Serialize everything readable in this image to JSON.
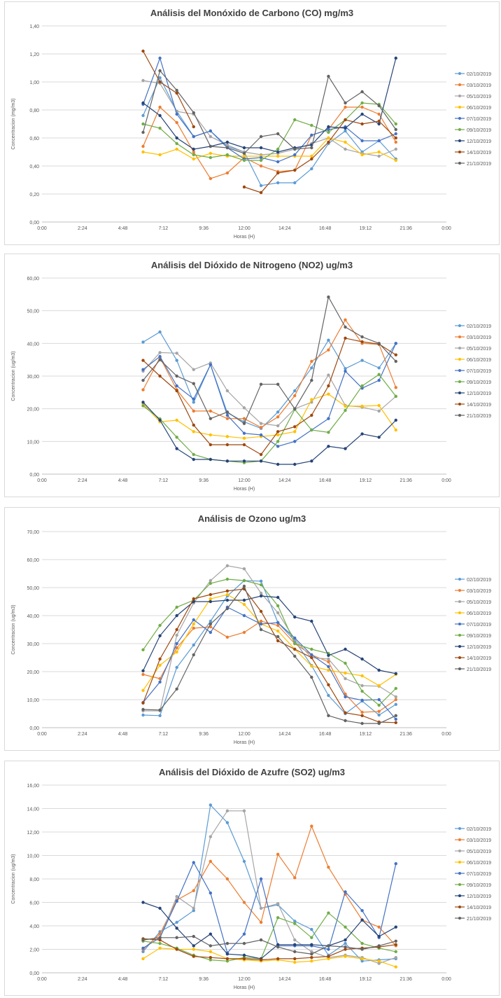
{
  "chart_data": [
    {
      "type": "line",
      "title": "Análisis del Monóxido de Carbono (CO) mg/m3",
      "xlabel": "Horas (H)",
      "ylabel": "Concentracion (mg/m3)",
      "xlim": [
        0,
        24
      ],
      "ylim": [
        0,
        1.4
      ],
      "xticks": [
        "0:00",
        "2:24",
        "4:48",
        "7:12",
        "9:36",
        "12:00",
        "14:24",
        "16:48",
        "19:12",
        "21:36",
        "0:00"
      ],
      "yticks": [
        "0,00",
        "0,20",
        "0,40",
        "0,60",
        "0,80",
        "1,00",
        "1,20",
        "1,40"
      ],
      "grid": true,
      "legend": "right",
      "x": [
        6,
        7,
        8,
        9,
        10,
        11,
        12,
        13,
        14,
        15,
        16,
        17,
        18,
        19,
        20,
        21
      ],
      "series": [
        {
          "name": "02/10/2019",
          "color": "#5b9bd5",
          "values": [
            0.76,
            1.03,
            0.79,
            0.61,
            0.65,
            0.54,
            0.5,
            0.26,
            0.28,
            0.28,
            0.38,
            0.56,
            0.65,
            0.5,
            0.58,
            0.45
          ]
        },
        {
          "name": "03/10/2019",
          "color": "#ed7d31",
          "values": [
            0.54,
            0.82,
            0.71,
            0.5,
            0.31,
            0.35,
            0.46,
            0.4,
            0.36,
            0.37,
            0.62,
            0.66,
            0.82,
            0.82,
            0.77,
            0.57
          ]
        },
        {
          "name": "05/10/2019",
          "color": "#a5a5a5",
          "values": [
            1.01,
            0.99,
            0.79,
            0.77,
            0.61,
            0.55,
            0.5,
            0.48,
            0.49,
            0.52,
            0.56,
            0.6,
            0.52,
            0.49,
            0.47,
            0.52
          ]
        },
        {
          "name": "06/10/2019",
          "color": "#ffc000",
          "values": [
            0.5,
            0.48,
            0.52,
            0.45,
            0.49,
            0.47,
            0.47,
            0.47,
            0.47,
            0.47,
            0.47,
            0.6,
            0.57,
            0.48,
            0.5,
            0.44
          ]
        },
        {
          "name": "07/10/2019",
          "color": "#4472c4",
          "values": [
            0.84,
            1.17,
            0.77,
            0.61,
            0.65,
            0.53,
            0.45,
            0.46,
            0.43,
            0.48,
            0.62,
            0.66,
            0.68,
            0.58,
            0.58,
            0.63
          ]
        },
        {
          "name": "09/10/2019",
          "color": "#70ad47",
          "values": [
            0.7,
            0.67,
            0.56,
            0.48,
            0.46,
            0.48,
            0.44,
            0.44,
            0.52,
            0.73,
            0.69,
            0.64,
            0.73,
            0.85,
            0.84,
            0.7
          ]
        },
        {
          "name": "12/10/2019",
          "color": "#264478",
          "values": [
            0.85,
            0.76,
            0.6,
            0.52,
            0.54,
            0.57,
            0.53,
            0.53,
            0.5,
            0.53,
            0.55,
            0.68,
            0.67,
            0.77,
            0.7,
            1.17
          ]
        },
        {
          "name": "14/10/2019",
          "color": "#9e480e",
          "values": [
            1.22,
            1.0,
            0.92,
            0.68,
            null,
            null,
            0.25,
            0.21,
            0.35,
            0.37,
            0.45,
            0.57,
            0.73,
            0.7,
            0.72,
            0.6
          ]
        },
        {
          "name": "21/10/2019",
          "color": "#636363",
          "values": [
            0.64,
            1.08,
            0.94,
            0.78,
            0.54,
            0.53,
            0.49,
            0.61,
            0.63,
            0.52,
            0.53,
            1.04,
            0.85,
            0.93,
            0.83,
            0.66
          ]
        }
      ]
    },
    {
      "type": "line",
      "title": "Análisis del Dióxido de Nitrogeno (NO2) ug/m3",
      "xlabel": "Horas (H)",
      "ylabel": "Concentracion (ug/m3)",
      "xlim": [
        0,
        24
      ],
      "ylim": [
        0,
        60
      ],
      "xticks": [
        "0:00",
        "2:24",
        "4:48",
        "7:12",
        "9:36",
        "12:00",
        "14:24",
        "16:48",
        "19:12",
        "21:36",
        "0:00"
      ],
      "yticks": [
        "0,00",
        "10,00",
        "20,00",
        "30,00",
        "40,00",
        "50,00",
        "60,00"
      ],
      "grid": true,
      "legend": "right",
      "x": [
        6,
        7,
        8,
        9,
        10,
        11,
        12,
        13,
        14,
        15,
        16,
        17,
        18,
        19,
        20,
        21
      ],
      "series": [
        {
          "name": "02/10/2019",
          "color": "#5b9bd5",
          "values": [
            40.4,
            43.5,
            34.8,
            22.0,
            33.5,
            18.8,
            16.0,
            14.0,
            19.0,
            25.5,
            32.5,
            41.0,
            32.3,
            34.8,
            32.5,
            40.0
          ]
        },
        {
          "name": "03/10/2019",
          "color": "#ed7d31",
          "values": [
            25.8,
            35.7,
            25.8,
            19.3,
            19.3,
            17.0,
            17.0,
            14.3,
            17.5,
            24.0,
            34.5,
            38.0,
            47.2,
            40.0,
            39.7,
            26.5
          ]
        },
        {
          "name": "05/10/2019",
          "color": "#a5a5a5",
          "values": [
            31.5,
            37.2,
            37.0,
            32.0,
            34.0,
            25.5,
            20.3,
            15.5,
            14.8,
            20.0,
            22.0,
            30.3,
            21.0,
            20.5,
            19.3,
            23.8
          ]
        },
        {
          "name": "06/10/2019",
          "color": "#ffc000",
          "values": [
            21.5,
            16.0,
            16.5,
            13.0,
            12.0,
            11.5,
            11.0,
            11.5,
            12.0,
            13.0,
            22.8,
            24.5,
            20.8,
            20.8,
            21.0,
            13.5
          ]
        },
        {
          "name": "07/10/2019",
          "color": "#4472c4",
          "values": [
            32.0,
            36.0,
            27.0,
            23.0,
            33.5,
            18.0,
            12.5,
            12.0,
            8.5,
            10.0,
            13.5,
            17.0,
            31.5,
            26.3,
            28.7,
            40.0
          ]
        },
        {
          "name": "09/10/2019",
          "color": "#70ad47",
          "values": [
            20.9,
            16.9,
            11.3,
            6.0,
            4.5,
            4.0,
            3.5,
            4.0,
            10.0,
            19.8,
            13.5,
            12.8,
            19.5,
            27.0,
            30.5,
            23.8
          ]
        },
        {
          "name": "12/10/2019",
          "color": "#264478",
          "values": [
            22.0,
            16.5,
            7.8,
            4.5,
            4.5,
            4.0,
            4.0,
            4.0,
            3.0,
            3.0,
            4.0,
            8.5,
            7.8,
            12.3,
            11.3,
            16.5
          ]
        },
        {
          "name": "14/10/2019",
          "color": "#9e480e",
          "values": [
            34.8,
            30.0,
            25.5,
            15.0,
            9.0,
            9.0,
            9.0,
            6.0,
            13.0,
            14.5,
            18.0,
            27.0,
            41.6,
            40.5,
            39.8,
            36.5
          ]
        },
        {
          "name": "21/10/2019",
          "color": "#636363",
          "values": [
            28.7,
            35.0,
            30.0,
            27.7,
            17.0,
            19.0,
            15.5,
            27.5,
            27.5,
            20.0,
            28.7,
            54.2,
            45.0,
            42.0,
            40.0,
            34.5
          ]
        }
      ]
    },
    {
      "type": "line",
      "title": "Análisis de Ozono ug/m3",
      "xlabel": "Horas (H)",
      "ylabel": "Concentracion (ug/m3)",
      "xlim": [
        0,
        24
      ],
      "ylim": [
        0,
        70
      ],
      "xticks": [
        "0:00",
        "2:24",
        "4:48",
        "7:12",
        "9:36",
        "12:00",
        "14:24",
        "16:48",
        "19:12",
        "21:36",
        "0:00"
      ],
      "yticks": [
        "0,00",
        "10,00",
        "20,00",
        "30,00",
        "40,00",
        "50,00",
        "60,00",
        "70,00"
      ],
      "grid": true,
      "legend": "right",
      "x": [
        6,
        7,
        8,
        9,
        10,
        11,
        12,
        13,
        14,
        15,
        16,
        17,
        18,
        19,
        20,
        21
      ],
      "series": [
        {
          "name": "02/10/2019",
          "color": "#5b9bd5",
          "values": [
            4.5,
            4.3,
            21.5,
            29.5,
            38.0,
            47.0,
            52.5,
            52.3,
            37.5,
            31.0,
            22.2,
            11.5,
            5.0,
            9.5,
            4.5,
            8.3
          ]
        },
        {
          "name": "03/10/2019",
          "color": "#ed7d31",
          "values": [
            19.0,
            17.5,
            28.5,
            35.5,
            36.0,
            32.3,
            34.0,
            38.0,
            36.5,
            30.0,
            26.0,
            23.5,
            12.0,
            5.5,
            5.8,
            10.0
          ]
        },
        {
          "name": "05/10/2019",
          "color": "#a5a5a5",
          "values": [
            6.0,
            6.0,
            33.0,
            44.5,
            52.5,
            57.8,
            56.7,
            48.0,
            41.0,
            31.5,
            25.0,
            24.5,
            17.5,
            15.0,
            14.8,
            11.0
          ]
        },
        {
          "name": "06/10/2019",
          "color": "#ffc000",
          "values": [
            13.3,
            22.3,
            27.0,
            37.0,
            46.0,
            47.5,
            44.0,
            37.0,
            34.5,
            28.0,
            22.0,
            20.5,
            19.5,
            18.5,
            15.0,
            19.0
          ]
        },
        {
          "name": "07/10/2019",
          "color": "#4472c4",
          "values": [
            9.0,
            16.3,
            30.0,
            38.5,
            34.0,
            43.0,
            40.0,
            37.0,
            37.5,
            32.0,
            26.0,
            21.8,
            11.0,
            9.8,
            10.0,
            3.0
          ]
        },
        {
          "name": "09/10/2019",
          "color": "#70ad47",
          "values": [
            27.8,
            36.5,
            43.0,
            45.5,
            51.5,
            53.0,
            52.5,
            51.0,
            43.5,
            30.0,
            28.0,
            26.5,
            23.0,
            13.0,
            8.0,
            14.0
          ]
        },
        {
          "name": "12/10/2019",
          "color": "#264478",
          "values": [
            20.3,
            32.8,
            40.0,
            45.0,
            45.0,
            45.5,
            45.5,
            47.0,
            46.5,
            39.5,
            38.0,
            25.8,
            28.0,
            24.5,
            20.5,
            19.3
          ]
        },
        {
          "name": "14/10/2019",
          "color": "#9e480e",
          "values": [
            8.8,
            24.5,
            35.0,
            46.0,
            47.5,
            48.8,
            49.5,
            41.5,
            31.0,
            28.0,
            25.0,
            15.3,
            5.3,
            4.3,
            2.0,
            1.8
          ]
        },
        {
          "name": "21/10/2019",
          "color": "#636363",
          "values": [
            6.5,
            6.3,
            13.8,
            26.0,
            37.0,
            42.5,
            50.5,
            35.0,
            32.5,
            25.5,
            18.0,
            4.3,
            2.5,
            1.5,
            1.5,
            4.3
          ]
        }
      ]
    },
    {
      "type": "line",
      "title": "Análisis del Dióxido de Azufre (SO2) ug/m3",
      "xlabel": "Horas (H)",
      "ylabel": "Concentracion (ug/m3)",
      "xlim": [
        0,
        24
      ],
      "ylim": [
        0,
        16
      ],
      "xticks": [
        "0:00",
        "2:24",
        "4:48",
        "7:12",
        "9:36",
        "12:00",
        "14:24",
        "16:48",
        "19:12",
        "21:36",
        "0:00"
      ],
      "yticks": [
        "0,00",
        "2,00",
        "4,00",
        "6,00",
        "8,00",
        "10,00",
        "12,00",
        "14,00",
        "16,00"
      ],
      "grid": true,
      "legend": "right",
      "x": [
        6,
        7,
        8,
        9,
        10,
        11,
        12,
        13,
        14,
        15,
        16,
        17,
        18,
        19,
        20,
        21
      ],
      "series": [
        {
          "name": "02/10/2019",
          "color": "#5b9bd5",
          "values": [
            1.8,
            3.5,
            4.3,
            5.3,
            14.3,
            12.8,
            9.5,
            5.5,
            5.8,
            4.4,
            3.7,
            1.5,
            2.5,
            1.0,
            1.1,
            1.2
          ]
        },
        {
          "name": "03/10/2019",
          "color": "#ed7d31",
          "values": [
            2.0,
            3.3,
            6.2,
            7.0,
            9.5,
            8.0,
            6.0,
            4.3,
            10.1,
            8.1,
            12.5,
            9.0,
            6.7,
            4.5,
            3.9,
            2.3
          ]
        },
        {
          "name": "05/10/2019",
          "color": "#a5a5a5",
          "values": [
            2.8,
            3.0,
            6.5,
            5.5,
            11.6,
            13.8,
            13.8,
            5.5,
            5.9,
            2.8,
            1.8,
            1.3,
            1.5,
            1.3,
            0.8,
            1.3
          ]
        },
        {
          "name": "06/10/2019",
          "color": "#ffc000",
          "values": [
            1.2,
            2.1,
            2.0,
            2.0,
            1.8,
            1.2,
            1.1,
            1.0,
            1.1,
            0.9,
            1.0,
            1.2,
            1.4,
            1.2,
            1.0,
            0.5
          ]
        },
        {
          "name": "07/10/2019",
          "color": "#4472c4",
          "values": [
            2.1,
            3.0,
            6.1,
            9.4,
            6.8,
            1.7,
            3.3,
            8.0,
            2.3,
            2.3,
            2.3,
            2.0,
            6.9,
            5.3,
            3.0,
            9.3
          ]
        },
        {
          "name": "09/10/2019",
          "color": "#70ad47",
          "values": [
            2.7,
            2.5,
            2.1,
            1.5,
            1.1,
            1.0,
            1.3,
            1.2,
            4.7,
            4.2,
            3.0,
            5.1,
            3.9,
            2.5,
            2.1,
            1.8
          ]
        },
        {
          "name": "12/10/2019",
          "color": "#264478",
          "values": [
            6.0,
            5.5,
            3.8,
            2.3,
            3.3,
            1.6,
            1.5,
            1.2,
            2.4,
            2.4,
            2.4,
            2.3,
            2.8,
            4.5,
            3.1,
            3.9
          ]
        },
        {
          "name": "14/10/2019",
          "color": "#9e480e",
          "values": [
            2.9,
            2.8,
            2.0,
            1.4,
            1.3,
            1.2,
            1.2,
            1.1,
            1.2,
            1.2,
            1.3,
            1.4,
            2.0,
            2.1,
            2.2,
            2.4
          ]
        },
        {
          "name": "21/10/2019",
          "color": "#636363",
          "values": [
            2.8,
            3.0,
            3.0,
            3.1,
            2.3,
            2.5,
            2.5,
            2.8,
            2.2,
            1.8,
            1.6,
            2.3,
            2.2,
            2.0,
            2.3,
            2.7
          ]
        }
      ]
    }
  ]
}
